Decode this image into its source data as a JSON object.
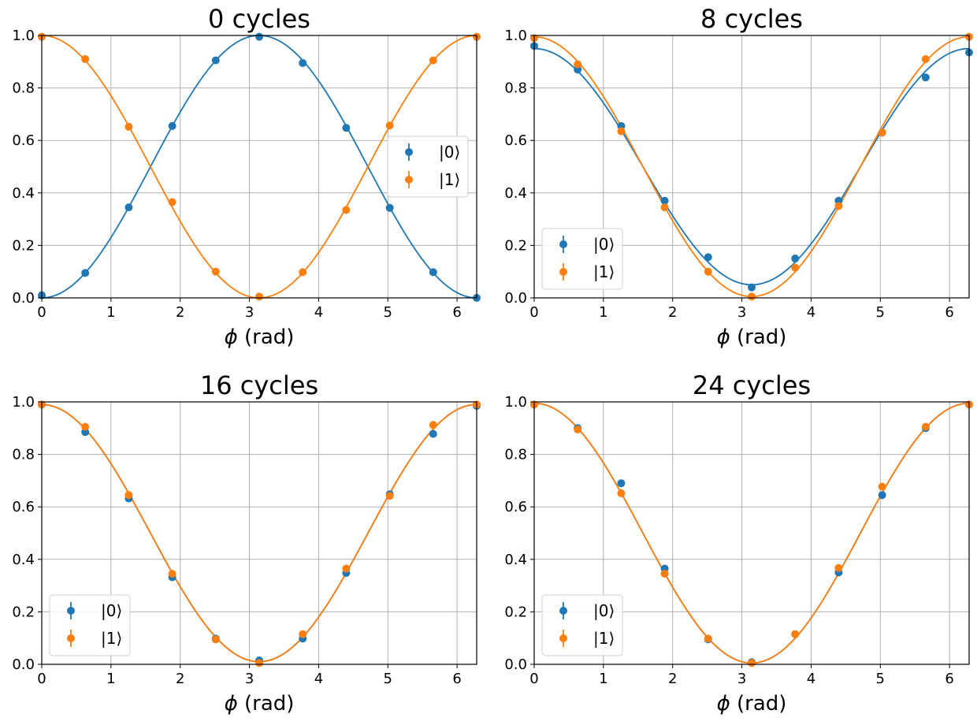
{
  "colors": {
    "state0": "#1f77b4",
    "state1": "#ff7f0e",
    "grid": "#b0b0b0",
    "axes": "#000000"
  },
  "chart_data": [
    {
      "type": "scatter",
      "title": "0 cycles",
      "xlabel": "ϕ (rad)",
      "ylabel": "",
      "xlim": [
        0,
        6.283
      ],
      "ylim": [
        0,
        1
      ],
      "xticks": [
        "0",
        "1",
        "2",
        "3",
        "4",
        "5",
        "6"
      ],
      "yticks": [
        "0.0",
        "0.2",
        "0.4",
        "0.6",
        "0.8",
        "1.0"
      ],
      "grid": true,
      "legend_position": "center-right",
      "x": [
        0,
        0.628,
        1.257,
        1.885,
        2.513,
        3.142,
        3.77,
        4.398,
        5.027,
        5.655,
        6.283
      ],
      "series": [
        {
          "name": "|0⟩",
          "color": "#1f77b4",
          "values": [
            0.01,
            0.095,
            0.345,
            0.655,
            0.905,
            0.995,
            0.895,
            0.648,
            0.343,
            0.098,
            0.0
          ],
          "fit": {
            "offset": 0.5,
            "amplitude": -0.5
          }
        },
        {
          "name": "|1⟩",
          "color": "#ff7f0e",
          "values": [
            0.995,
            0.91,
            0.652,
            0.365,
            0.1,
            0.005,
            0.098,
            0.335,
            0.657,
            0.905,
            0.995
          ],
          "fit": {
            "offset": 0.5,
            "amplitude": 0.5
          }
        }
      ]
    },
    {
      "type": "scatter",
      "title": "8 cycles",
      "xlabel": "ϕ (rad)",
      "ylabel": "",
      "xlim": [
        0,
        6.283
      ],
      "ylim": [
        0,
        1
      ],
      "xticks": [
        "0",
        "1",
        "2",
        "3",
        "4",
        "5",
        "6"
      ],
      "yticks": [
        "0.0",
        "0.2",
        "0.4",
        "0.6",
        "0.8",
        "1.0"
      ],
      "grid": true,
      "legend_position": "lower-left",
      "x": [
        0,
        0.628,
        1.257,
        1.885,
        2.513,
        3.142,
        3.77,
        4.398,
        5.027,
        5.655,
        6.283
      ],
      "series": [
        {
          "name": "|0⟩",
          "color": "#1f77b4",
          "values": [
            0.96,
            0.87,
            0.655,
            0.37,
            0.155,
            0.04,
            0.15,
            0.37,
            0.63,
            0.84,
            0.935
          ],
          "fit": {
            "offset": 0.5,
            "amplitude": 0.45
          }
        },
        {
          "name": "|1⟩",
          "color": "#ff7f0e",
          "values": [
            0.99,
            0.89,
            0.635,
            0.345,
            0.1,
            0.005,
            0.115,
            0.35,
            0.63,
            0.91,
            0.995
          ],
          "fit": {
            "offset": 0.5,
            "amplitude": 0.495
          }
        }
      ]
    },
    {
      "type": "scatter",
      "title": "16 cycles",
      "xlabel": "ϕ (rad)",
      "ylabel": "",
      "xlim": [
        0,
        6.283
      ],
      "ylim": [
        0,
        1
      ],
      "xticks": [
        "0",
        "1",
        "2",
        "3",
        "4",
        "5",
        "6"
      ],
      "yticks": [
        "0.0",
        "0.2",
        "0.4",
        "0.6",
        "0.8",
        "1.0"
      ],
      "grid": true,
      "legend_position": "lower-left",
      "x": [
        0,
        0.628,
        1.257,
        1.885,
        2.513,
        3.142,
        3.77,
        4.398,
        5.027,
        5.655,
        6.283
      ],
      "series": [
        {
          "name": "|0⟩",
          "color": "#1f77b4",
          "values": [
            0.99,
            0.885,
            0.632,
            0.332,
            0.098,
            0.015,
            0.098,
            0.348,
            0.648,
            0.878,
            0.985
          ],
          "fit": {
            "offset": 0.5,
            "amplitude": 0.49
          }
        },
        {
          "name": "|1⟩",
          "color": "#ff7f0e",
          "values": [
            0.99,
            0.905,
            0.645,
            0.345,
            0.095,
            0.005,
            0.115,
            0.365,
            0.642,
            0.912,
            0.99
          ],
          "fit": {
            "offset": 0.5,
            "amplitude": 0.49
          }
        }
      ]
    },
    {
      "type": "scatter",
      "title": "24 cycles",
      "xlabel": "ϕ (rad)",
      "ylabel": "",
      "xlim": [
        0,
        6.283
      ],
      "ylim": [
        0,
        1
      ],
      "xticks": [
        "0",
        "1",
        "2",
        "3",
        "4",
        "5",
        "6"
      ],
      "yticks": [
        "0.0",
        "0.2",
        "0.4",
        "0.6",
        "0.8",
        "1.0"
      ],
      "grid": true,
      "legend_position": "lower-left",
      "x": [
        0,
        0.628,
        1.257,
        1.885,
        2.513,
        3.142,
        3.77,
        4.398,
        5.027,
        5.655,
        6.283
      ],
      "series": [
        {
          "name": "|0⟩",
          "color": "#1f77b4",
          "values": [
            0.99,
            0.9,
            0.69,
            0.365,
            0.095,
            0.008,
            0.115,
            0.35,
            0.645,
            0.9,
            0.99
          ],
          "fit": {
            "offset": 0.5,
            "amplitude": 0.495
          }
        },
        {
          "name": "|1⟩",
          "color": "#ff7f0e",
          "values": [
            0.99,
            0.895,
            0.652,
            0.345,
            0.098,
            0.005,
            0.115,
            0.367,
            0.677,
            0.905,
            0.99
          ],
          "fit": {
            "offset": 0.5,
            "amplitude": 0.495
          }
        }
      ]
    }
  ]
}
